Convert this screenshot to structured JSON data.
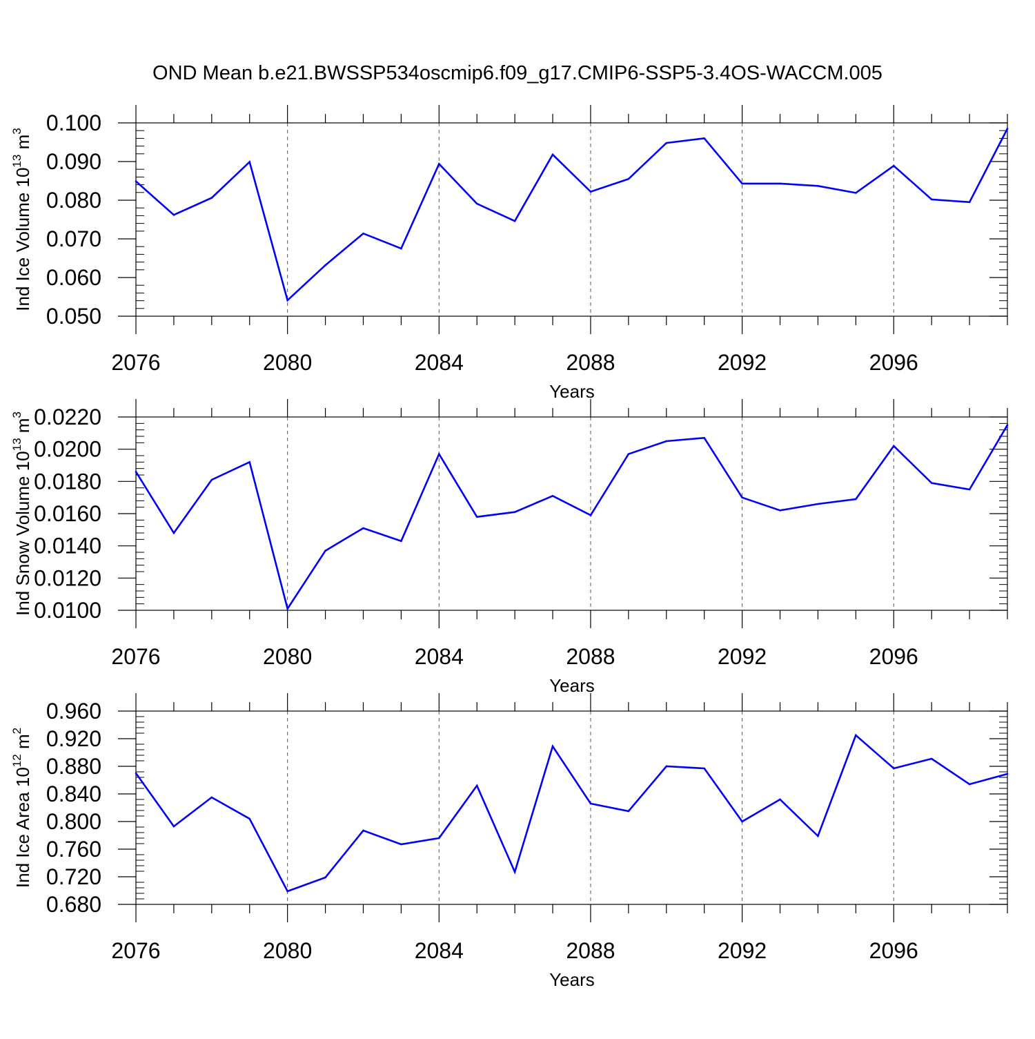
{
  "title": "OND Mean b.e21.BWSSP534oscmip6.f09_g17.CMIP6-SSP5-3.4OS-WACCM.005",
  "colors": {
    "line": "#0000ff",
    "axis": "#000000",
    "grid": "#555555"
  },
  "chart_data": [
    {
      "type": "line",
      "ylabel_main": "Ind Ice Volume 10",
      "ylabel_sup1": "13",
      "ylabel_unit": " m",
      "ylabel_sup2": "3",
      "xlabel": "Years",
      "xlim": [
        2076,
        2099
      ],
      "ylim": [
        0.05,
        0.1
      ],
      "yticks": [
        0.05,
        0.06,
        0.07,
        0.08,
        0.09,
        0.1
      ],
      "ytick_labels": [
        "0.050",
        "0.060",
        "0.070",
        "0.080",
        "0.090",
        "0.100"
      ],
      "yminor_step": 0.002,
      "xticks": [
        2076,
        2080,
        2084,
        2088,
        2092,
        2096
      ],
      "xtick_labels": [
        "2076",
        "2080",
        "2084",
        "2088",
        "2092",
        "2096"
      ],
      "x": [
        2076,
        2077,
        2078,
        2079,
        2080,
        2081,
        2082,
        2083,
        2084,
        2085,
        2086,
        2087,
        2088,
        2089,
        2090,
        2091,
        2092,
        2093,
        2094,
        2095,
        2096,
        2097,
        2098,
        2099
      ],
      "values": [
        0.0849,
        0.0762,
        0.0806,
        0.0899,
        0.0541,
        0.0632,
        0.0714,
        0.0675,
        0.0894,
        0.0791,
        0.0746,
        0.0918,
        0.0822,
        0.0855,
        0.0948,
        0.096,
        0.0843,
        0.0843,
        0.0837,
        0.0819,
        0.0889,
        0.0802,
        0.0795,
        0.0985
      ]
    },
    {
      "type": "line",
      "ylabel_main": "Ind Snow Volume 10",
      "ylabel_sup1": "13",
      "ylabel_unit": " m",
      "ylabel_sup2": "3",
      "xlabel": "Years",
      "xlim": [
        2076,
        2099
      ],
      "ylim": [
        0.01,
        0.022
      ],
      "yticks": [
        0.01,
        0.012,
        0.014,
        0.016,
        0.018,
        0.02,
        0.022
      ],
      "ytick_labels": [
        "0.0100",
        "0.0120",
        "0.0140",
        "0.0160",
        "0.0180",
        "0.0200",
        "0.0220"
      ],
      "yminor_step": 0.0004,
      "xticks": [
        2076,
        2080,
        2084,
        2088,
        2092,
        2096
      ],
      "xtick_labels": [
        "2076",
        "2080",
        "2084",
        "2088",
        "2092",
        "2096"
      ],
      "x": [
        2076,
        2077,
        2078,
        2079,
        2080,
        2081,
        2082,
        2083,
        2084,
        2085,
        2086,
        2087,
        2088,
        2089,
        2090,
        2091,
        2092,
        2093,
        2094,
        2095,
        2096,
        2097,
        2098,
        2099
      ],
      "values": [
        0.0186,
        0.0148,
        0.0181,
        0.0192,
        0.0101,
        0.0137,
        0.0151,
        0.0143,
        0.0197,
        0.0158,
        0.0161,
        0.0171,
        0.0159,
        0.0197,
        0.0205,
        0.0207,
        0.017,
        0.0162,
        0.0166,
        0.0169,
        0.0202,
        0.0179,
        0.0175,
        0.0215
      ]
    },
    {
      "type": "line",
      "ylabel_main": "Ind Ice Area 10",
      "ylabel_sup1": "12",
      "ylabel_unit": " m",
      "ylabel_sup2": "2",
      "xlabel": "Years",
      "xlim": [
        2076,
        2099
      ],
      "ylim": [
        0.68,
        0.96
      ],
      "yticks": [
        0.68,
        0.72,
        0.76,
        0.8,
        0.84,
        0.88,
        0.92,
        0.96
      ],
      "ytick_labels": [
        "0.680",
        "0.720",
        "0.760",
        "0.800",
        "0.840",
        "0.880",
        "0.920",
        "0.960"
      ],
      "yminor_step": 0.008,
      "xticks": [
        2076,
        2080,
        2084,
        2088,
        2092,
        2096
      ],
      "xtick_labels": [
        "2076",
        "2080",
        "2084",
        "2088",
        "2092",
        "2096"
      ],
      "x": [
        2076,
        2077,
        2078,
        2079,
        2080,
        2081,
        2082,
        2083,
        2084,
        2085,
        2086,
        2087,
        2088,
        2089,
        2090,
        2091,
        2092,
        2093,
        2094,
        2095,
        2096,
        2097,
        2098,
        2099
      ],
      "values": [
        0.87,
        0.793,
        0.835,
        0.804,
        0.699,
        0.719,
        0.787,
        0.767,
        0.776,
        0.852,
        0.727,
        0.909,
        0.826,
        0.815,
        0.88,
        0.877,
        0.8,
        0.832,
        0.779,
        0.925,
        0.877,
        0.891,
        0.854,
        0.869
      ]
    }
  ]
}
